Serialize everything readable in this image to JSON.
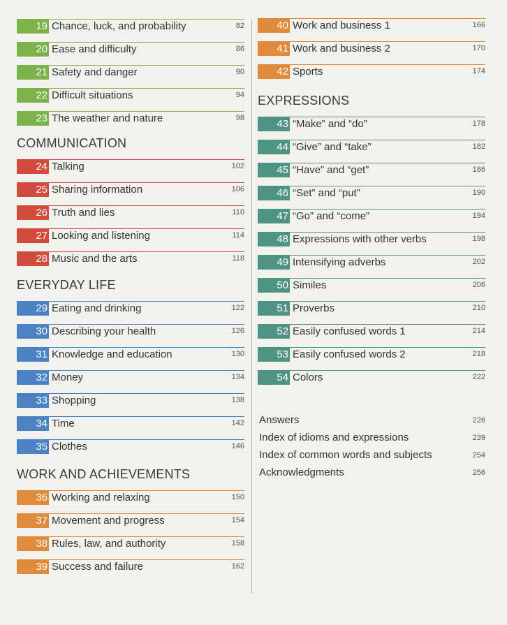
{
  "colors": {
    "green": "#7bb24a",
    "red": "#d24b3c",
    "blue": "#4a82c4",
    "orange": "#e08a3c",
    "teal": "#4f9482"
  },
  "left_column": [
    {
      "type": "entries",
      "color": "green",
      "items": [
        {
          "num": "19",
          "title": "Chance, luck, and probability",
          "page": "82"
        },
        {
          "num": "20",
          "title": "Ease and difficulty",
          "page": "86"
        },
        {
          "num": "21",
          "title": "Safety and danger",
          "page": "90"
        },
        {
          "num": "22",
          "title": "Difficult situations",
          "page": "94"
        },
        {
          "num": "23",
          "title": "The weather and nature",
          "page": "98"
        }
      ]
    },
    {
      "type": "heading",
      "text": "COMMUNICATION"
    },
    {
      "type": "entries",
      "color": "red",
      "items": [
        {
          "num": "24",
          "title": "Talking",
          "page": "102"
        },
        {
          "num": "25",
          "title": "Sharing information",
          "page": "106"
        },
        {
          "num": "26",
          "title": "Truth and lies",
          "page": "110"
        },
        {
          "num": "27",
          "title": "Looking and listening",
          "page": "114"
        },
        {
          "num": "28",
          "title": "Music and the arts",
          "page": "118"
        }
      ]
    },
    {
      "type": "heading",
      "text": "EVERYDAY LIFE"
    },
    {
      "type": "entries",
      "color": "blue",
      "items": [
        {
          "num": "29",
          "title": "Eating and drinking",
          "page": "122"
        },
        {
          "num": "30",
          "title": "Describing your health",
          "page": "126"
        },
        {
          "num": "31",
          "title": "Knowledge and education",
          "page": "130"
        },
        {
          "num": "32",
          "title": "Money",
          "page": "134"
        },
        {
          "num": "33",
          "title": "Shopping",
          "page": "138"
        },
        {
          "num": "34",
          "title": "Time",
          "page": "142"
        },
        {
          "num": "35",
          "title": "Clothes",
          "page": "146"
        }
      ]
    },
    {
      "type": "heading",
      "text": "WORK AND ACHIEVEMENTS"
    },
    {
      "type": "entries",
      "color": "orange",
      "items": [
        {
          "num": "36",
          "title": "Working and relaxing",
          "page": "150"
        },
        {
          "num": "37",
          "title": "Movement and progress",
          "page": "154"
        },
        {
          "num": "38",
          "title": "Rules, law, and authority",
          "page": "158"
        },
        {
          "num": "39",
          "title": "Success and failure",
          "page": "162"
        }
      ]
    }
  ],
  "right_column": [
    {
      "type": "entries",
      "color": "orange",
      "items": [
        {
          "num": "40",
          "title": "Work and business 1",
          "page": "166"
        },
        {
          "num": "41",
          "title": "Work and business 2",
          "page": "170"
        },
        {
          "num": "42",
          "title": "Sports",
          "page": "174"
        }
      ]
    },
    {
      "type": "heading",
      "text": "EXPRESSIONS"
    },
    {
      "type": "entries",
      "color": "teal",
      "items": [
        {
          "num": "43",
          "title": "“Make” and “do”",
          "page": "178"
        },
        {
          "num": "44",
          "title": "“Give” and “take”",
          "page": "182"
        },
        {
          "num": "45",
          "title": "“Have” and “get”",
          "page": "186"
        },
        {
          "num": "46",
          "title": "“Set” and “put”",
          "page": "190"
        },
        {
          "num": "47",
          "title": "“Go” and “come”",
          "page": "194"
        },
        {
          "num": "48",
          "title": "Expressions with other verbs",
          "page": "198"
        },
        {
          "num": "49",
          "title": "Intensifying adverbs",
          "page": "202"
        },
        {
          "num": "50",
          "title": "Similes",
          "page": "206"
        },
        {
          "num": "51",
          "title": "Proverbs",
          "page": "210"
        },
        {
          "num": "52",
          "title": "Easily confused words 1",
          "page": "214"
        },
        {
          "num": "53",
          "title": "Easily confused words 2",
          "page": "218"
        },
        {
          "num": "54",
          "title": "Colors",
          "page": "222"
        }
      ]
    }
  ],
  "back_matter": [
    {
      "title": "Answers",
      "page": "226"
    },
    {
      "title": "Index of idioms and expressions",
      "page": "239"
    },
    {
      "title": "Index of common words and subjects",
      "page": "254"
    },
    {
      "title": "Acknowledgments",
      "page": "256"
    }
  ]
}
